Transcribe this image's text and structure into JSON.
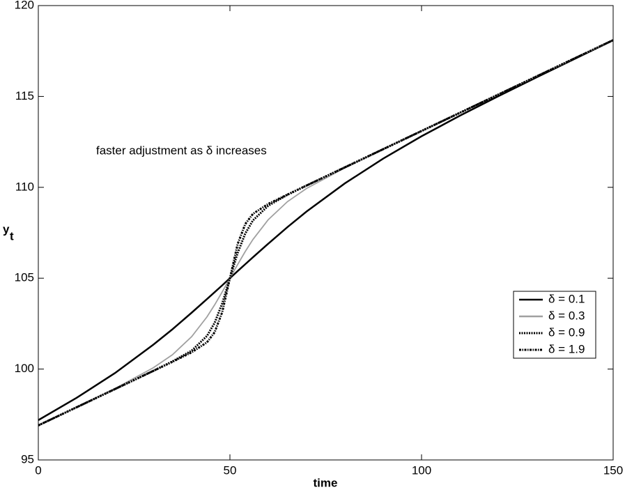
{
  "chart_data": {
    "type": "line",
    "xlabel": "time",
    "ylabel": "y",
    "ylabel_subscript": "t",
    "annotation": "faster adjustment as δ increases",
    "x": [
      0,
      10,
      20,
      30,
      35,
      40,
      44,
      46,
      48,
      50,
      52,
      54,
      56,
      60,
      65,
      70,
      80,
      90,
      100,
      110,
      120,
      130,
      140,
      150
    ],
    "series": [
      {
        "name": "δ = 0.1",
        "color": "#000000",
        "style": "solid",
        "values": [
          97.19,
          98.42,
          99.78,
          101.34,
          102.19,
          103.1,
          103.85,
          104.23,
          104.61,
          105.0,
          105.39,
          105.77,
          106.15,
          106.9,
          107.81,
          108.67,
          110.22,
          111.58,
          112.81,
          113.94,
          115.01,
          116.05,
          117.07,
          118.09
        ]
      },
      {
        "name": "δ = 0.3",
        "color": "#a0a0a0",
        "style": "solid",
        "values": [
          96.9,
          97.9,
          98.93,
          100.07,
          100.79,
          101.78,
          102.87,
          103.53,
          104.25,
          105.0,
          105.75,
          106.47,
          107.13,
          108.22,
          109.21,
          109.94,
          111.07,
          112.1,
          113.1,
          114.1,
          115.1,
          116.1,
          117.1,
          118.1
        ]
      },
      {
        "name": "δ = 0.9",
        "color": "#000000",
        "style": "dotted",
        "values": [
          96.9,
          97.9,
          98.9,
          99.9,
          100.42,
          101.01,
          101.82,
          102.54,
          103.62,
          105.0,
          106.38,
          107.46,
          108.18,
          108.99,
          109.59,
          110.1,
          111.1,
          112.1,
          113.1,
          114.1,
          115.1,
          116.1,
          117.1,
          118.1
        ]
      },
      {
        "name": "δ = 1.9",
        "color": "#000000",
        "style": "dashdot",
        "values": [
          96.9,
          97.9,
          98.9,
          99.9,
          100.4,
          100.92,
          101.47,
          102.02,
          103.14,
          105.0,
          106.87,
          107.98,
          108.54,
          109.09,
          109.6,
          110.1,
          111.1,
          112.1,
          113.1,
          114.1,
          115.1,
          116.1,
          117.1,
          118.1
        ]
      }
    ],
    "xlim": [
      0,
      150
    ],
    "xticks": [
      0,
      50,
      100,
      150
    ],
    "ylim": [
      95,
      120
    ],
    "yticks": [
      95,
      100,
      105,
      110,
      115,
      120
    ],
    "grid": false,
    "legend": "lower right"
  }
}
